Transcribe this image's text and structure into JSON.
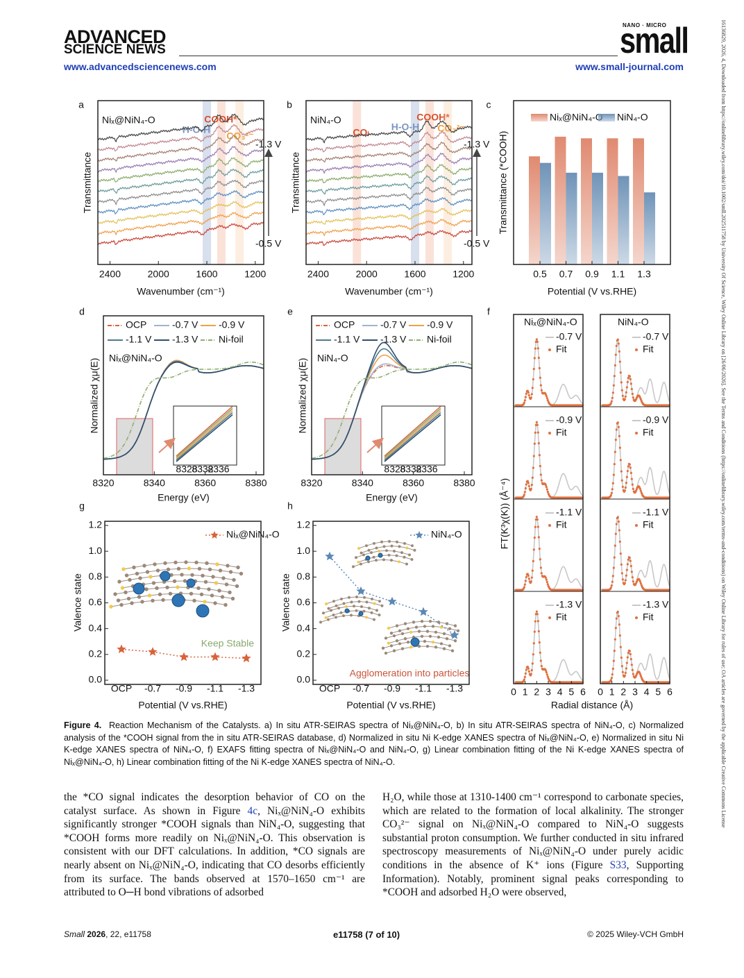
{
  "header": {
    "logo_line1": "ADVANCED",
    "logo_line2": "SCIENCE NEWS",
    "left_url": "www.advancedsciencenews.com",
    "journal_tag": "NANO · MICRO",
    "journal": "small",
    "right_url": "www.small-journal.com"
  },
  "side_note": "16136829, 2026, 4, Downloaded from https://onlinelibrary.wiley.com/doi/10.1002/smll.202511758 by University Of Science, Wiley Online Library on [26/06/2026]. See the Terms and Conditions (https://onlinelibrary.wiley.com/terms-and-conditions) on Wiley Online Library for rules of use; OA articles are governed by the applicable Creative Commons License",
  "figure": {
    "panel_a": {
      "label": "a",
      "title": "Niₓ@NiN₄-O",
      "band_labels": [
        "H-O-H",
        "COOH*",
        "CO₃²⁻"
      ],
      "top_label": "-1.3 V",
      "bottom_label": "-0.5 V",
      "ylabel": "Transmittance",
      "xlabel": "Wavenumber (cm⁻¹)",
      "xlim": [
        2500,
        1130
      ],
      "xticks": [
        2400,
        2000,
        1600,
        1200
      ]
    },
    "panel_b": {
      "label": "b",
      "title": "NiN₄-O",
      "band_labels": [
        "COₗ",
        "H-O-H",
        "COOH*",
        "CO₃²⁻"
      ],
      "top_label": "-1.3 V",
      "bottom_label": "-0.5 V",
      "ylabel": "Transmittance",
      "xlabel": "Wavenumber (cm⁻¹)",
      "xlim": [
        2500,
        1130
      ],
      "xticks": [
        2400,
        2000,
        1600,
        1200
      ]
    },
    "panel_c": {
      "label": "c",
      "type": "bar",
      "ylabel": "Transmittance (*COOH)",
      "xlabel": "Potential (V vs.RHE)",
      "categories": [
        "0.5",
        "0.7",
        "0.9",
        "1.1",
        "1.3"
      ],
      "ylim": [
        0,
        1
      ],
      "series": [
        {
          "name": "Niₓ@NiN₄-O",
          "color": "#e08a70",
          "values": [
            0.66,
            0.78,
            0.77,
            0.77,
            0.77
          ]
        },
        {
          "name": "NiN₄-O",
          "color": "#6f93b8",
          "values": [
            0.62,
            0.56,
            0.56,
            0.54,
            0.44
          ]
        }
      ]
    },
    "panel_d": {
      "label": "d",
      "legend": [
        "OCP",
        "-0.7 V",
        "-0.9 V",
        "-1.1 V",
        "-1.3 V",
        "Ni-foil"
      ],
      "sample": "Niₓ@NiN₄-O",
      "ylabel": "Normalized χμ(E)",
      "xlabel": "Energy (eV)",
      "xlim": [
        8320,
        8383
      ],
      "xticks": [
        8320,
        8340,
        8360,
        8380
      ],
      "inset_ticks": [
        8328,
        8332,
        8336
      ]
    },
    "panel_e": {
      "label": "e",
      "legend": [
        "OCP",
        "-0.7 V",
        "-0.9 V",
        "-1.1 V",
        "-1.3 V",
        "Ni-foil"
      ],
      "sample": "NiN₄-O",
      "ylabel": "Normalized χμ(E)",
      "xlabel": "Energy (eV)",
      "xlim": [
        8320,
        8383
      ],
      "xticks": [
        8320,
        8340,
        8360,
        8380
      ],
      "inset_ticks": [
        8328,
        8332,
        8336
      ]
    },
    "panel_f": {
      "label": "f",
      "samples": [
        "Niₓ@NiN₄-O",
        "NiN₄-O"
      ],
      "potentials": [
        "-0.7 V",
        "-0.9 V",
        "-1.1 V",
        "-1.3 V"
      ],
      "fit": "Fit",
      "ylabel": "FT(K³χ(K)) (Å⁻⁴)",
      "xlabel": "Radial distance (Å)",
      "xlim": [
        0,
        6
      ],
      "xticks": [
        0,
        1,
        2,
        3,
        4,
        5,
        6
      ]
    },
    "panel_g": {
      "label": "g",
      "type": "line",
      "ylabel": "Valence state",
      "xlabel": "Potential (V vs.RHE)",
      "categories": [
        "OCP",
        "-0.7",
        "-0.9",
        "-1.1",
        "-1.3"
      ],
      "ylim": [
        0,
        1.2
      ],
      "yticks": [
        {
          "value": 0,
          "label": "0.0"
        },
        0.2,
        0.4,
        0.6,
        0.8,
        {
          "value": 1,
          "label": "1.0"
        },
        1.2
      ],
      "series": [
        {
          "name": "Niₓ@NiN₄-O",
          "color": "#d9623b",
          "values": [
            0.24,
            0.22,
            0.18,
            0.18,
            0.17
          ]
        }
      ],
      "annotation": "Keep Stable"
    },
    "panel_h": {
      "label": "h",
      "type": "line",
      "ylabel": "Valence state",
      "xlabel": "Potential (V vs.RHE)",
      "categories": [
        "OCP",
        "-0.7",
        "-0.9",
        "-1.1",
        "-1.3"
      ],
      "ylim": [
        0,
        1.2
      ],
      "yticks": [
        {
          "value": 0,
          "label": "0.0"
        },
        0.2,
        0.4,
        0.6,
        0.8,
        {
          "value": 1,
          "label": "1.0"
        },
        1.2
      ],
      "series": [
        {
          "name": "NiN₄-O",
          "color": "#5b88b5",
          "values": [
            0.96,
            0.69,
            0.61,
            0.53,
            0.35
          ]
        }
      ],
      "annotation": "Agglomeration into particles"
    }
  },
  "caption": {
    "label": "Figure 4.",
    "text": "Reaction Mechanism of the Catalysts. a) In situ ATR-SEIRAS spectra of Niₓ@NiN₄-O, b) In situ ATR-SEIRAS spectra of NiN₄-O, c) Normalized analysis of the *COOH signal from the in situ ATR-SEIRAS database, d) Normalized in situ Ni K-edge XANES spectra of Niₓ@NiN₄-O, e) Normalized in situ Ni K-edge XANES spectra of NiN₄-O, f) EXAFS fitting spectra of Niₓ@NiN₄-O and NiN₄-O, g) Linear combination fitting of the Ni K-edge XANES spectra of Niₓ@NiN₄-O, h) Linear combination fitting of the Ni K-edge XANES spectra of NiN₄-O."
  },
  "body": {
    "left_column": [
      "the *CO signal indicates the desorption behavior of CO on the catalyst surface. As shown in Figure ",
      "4c",
      ", Niₓ@NiN₄-O exhibits significantly stronger *COOH signals than NiN₄-O, suggesting that *COOH forms more readily on Niₓ@NiN₄-O. This observation is consistent with our DFT calculations. In addition, *CO signals are nearly absent on Niₓ@NiN₄-O, indicating that CO desorbs efficiently from its surface. The bands observed at 1570–1650 cm⁻¹ are attributed to O─H bond vibrations of adsorbed"
    ],
    "right_column": [
      "H₂O, while those at 1310-1400 cm⁻¹ correspond to carbonate species, which are related to the formation of local alkalinity. The stronger CO₃²⁻ signal on Niₓ@NiN₄-O compared to NiN₄-O suggests substantial proton consumption. We further conducted in situ infrared spectroscopy measurements of Niₓ@NiN₄-O under purely acidic conditions in the absence of K⁺ ions (Figure ",
      "S33",
      ", Supporting Information). Notably, prominent signal peaks corresponding to *COOH and adsorbed H₂O were observed,"
    ]
  },
  "footer": {
    "journal": "Small",
    "year": "2026",
    "citation": ", 22, e11758",
    "page": "e11758 (7 of 10)",
    "copyright": "© 2025 Wiley-VCH GmbH"
  }
}
